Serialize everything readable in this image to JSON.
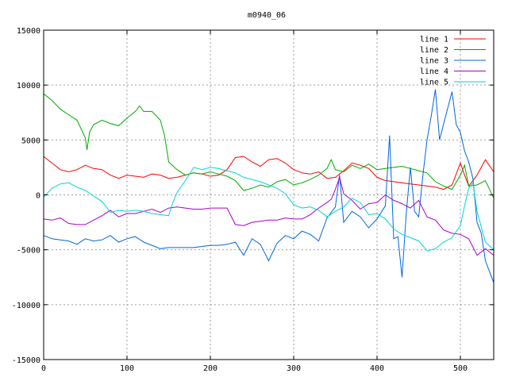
{
  "chart_data": {
    "type": "line",
    "title": "m0940_06",
    "xlim": [
      0,
      540
    ],
    "ylim": [
      -15000,
      15000
    ],
    "x_ticks": [
      0,
      100,
      200,
      300,
      400,
      500
    ],
    "y_ticks": [
      -15000,
      -10000,
      -5000,
      0,
      5000,
      10000,
      15000
    ],
    "grid": true,
    "legend_position": "top-right",
    "series": [
      {
        "name": "line 1",
        "color": "#ff0000",
        "points": [
          [
            0,
            3500
          ],
          [
            10,
            2900
          ],
          [
            20,
            2300
          ],
          [
            30,
            2100
          ],
          [
            40,
            2300
          ],
          [
            50,
            2700
          ],
          [
            60,
            2400
          ],
          [
            70,
            2300
          ],
          [
            80,
            1800
          ],
          [
            90,
            1500
          ],
          [
            100,
            1800
          ],
          [
            110,
            1700
          ],
          [
            120,
            1600
          ],
          [
            130,
            1900
          ],
          [
            140,
            1800
          ],
          [
            150,
            1500
          ],
          [
            160,
            1600
          ],
          [
            170,
            1800
          ],
          [
            180,
            2000
          ],
          [
            190,
            1900
          ],
          [
            200,
            1700
          ],
          [
            210,
            1800
          ],
          [
            220,
            2300
          ],
          [
            230,
            3400
          ],
          [
            240,
            3500
          ],
          [
            250,
            3000
          ],
          [
            260,
            2600
          ],
          [
            270,
            3200
          ],
          [
            280,
            3300
          ],
          [
            290,
            2900
          ],
          [
            300,
            2300
          ],
          [
            310,
            2000
          ],
          [
            320,
            1900
          ],
          [
            330,
            2100
          ],
          [
            340,
            1500
          ],
          [
            350,
            1600
          ],
          [
            360,
            2200
          ],
          [
            370,
            2900
          ],
          [
            380,
            2700
          ],
          [
            390,
            2400
          ],
          [
            400,
            1600
          ],
          [
            410,
            1300
          ],
          [
            420,
            1200
          ],
          [
            430,
            1100
          ],
          [
            440,
            1000
          ],
          [
            450,
            900
          ],
          [
            460,
            800
          ],
          [
            470,
            700
          ],
          [
            480,
            500
          ],
          [
            490,
            900
          ],
          [
            500,
            2900
          ],
          [
            505,
            1800
          ],
          [
            510,
            800
          ],
          [
            520,
            1800
          ],
          [
            530,
            3200
          ],
          [
            540,
            2100
          ]
        ]
      },
      {
        "name": "line 2",
        "color": "#00aa00",
        "points": [
          [
            0,
            9200
          ],
          [
            10,
            8600
          ],
          [
            20,
            7800
          ],
          [
            30,
            7300
          ],
          [
            40,
            6800
          ],
          [
            50,
            5200
          ],
          [
            52,
            4100
          ],
          [
            55,
            5700
          ],
          [
            60,
            6400
          ],
          [
            70,
            6800
          ],
          [
            80,
            6500
          ],
          [
            90,
            6300
          ],
          [
            100,
            7000
          ],
          [
            110,
            7600
          ],
          [
            115,
            8100
          ],
          [
            120,
            7600
          ],
          [
            130,
            7600
          ],
          [
            140,
            6800
          ],
          [
            145,
            5400
          ],
          [
            150,
            3000
          ],
          [
            160,
            2300
          ],
          [
            170,
            1800
          ],
          [
            180,
            2000
          ],
          [
            190,
            1900
          ],
          [
            200,
            2100
          ],
          [
            210,
            1900
          ],
          [
            220,
            1700
          ],
          [
            230,
            1300
          ],
          [
            240,
            400
          ],
          [
            250,
            600
          ],
          [
            260,
            900
          ],
          [
            270,
            700
          ],
          [
            280,
            1200
          ],
          [
            290,
            1400
          ],
          [
            300,
            900
          ],
          [
            310,
            1100
          ],
          [
            320,
            1400
          ],
          [
            330,
            1800
          ],
          [
            340,
            2400
          ],
          [
            345,
            3200
          ],
          [
            350,
            2300
          ],
          [
            360,
            2100
          ],
          [
            370,
            2700
          ],
          [
            380,
            2400
          ],
          [
            390,
            2800
          ],
          [
            400,
            2300
          ],
          [
            410,
            2400
          ],
          [
            420,
            2500
          ],
          [
            430,
            2600
          ],
          [
            440,
            2400
          ],
          [
            450,
            2200
          ],
          [
            460,
            2000
          ],
          [
            470,
            1200
          ],
          [
            480,
            800
          ],
          [
            490,
            500
          ],
          [
            500,
            1800
          ],
          [
            505,
            2700
          ],
          [
            510,
            800
          ],
          [
            520,
            900
          ],
          [
            530,
            1300
          ],
          [
            540,
            -300
          ]
        ]
      },
      {
        "name": "line 3",
        "color": "#0066dd",
        "points": [
          [
            0,
            -3700
          ],
          [
            10,
            -4000
          ],
          [
            20,
            -4100
          ],
          [
            30,
            -4200
          ],
          [
            40,
            -4500
          ],
          [
            50,
            -4000
          ],
          [
            60,
            -4200
          ],
          [
            70,
            -4100
          ],
          [
            80,
            -3700
          ],
          [
            90,
            -4300
          ],
          [
            100,
            -4000
          ],
          [
            110,
            -3800
          ],
          [
            120,
            -4300
          ],
          [
            130,
            -4600
          ],
          [
            140,
            -4900
          ],
          [
            150,
            -4800
          ],
          [
            160,
            -4800
          ],
          [
            170,
            -4800
          ],
          [
            180,
            -4800
          ],
          [
            190,
            -4700
          ],
          [
            200,
            -4600
          ],
          [
            210,
            -4600
          ],
          [
            220,
            -4500
          ],
          [
            230,
            -4300
          ],
          [
            240,
            -5500
          ],
          [
            250,
            -4000
          ],
          [
            260,
            -4500
          ],
          [
            270,
            -6000
          ],
          [
            280,
            -4400
          ],
          [
            290,
            -3700
          ],
          [
            300,
            -4000
          ],
          [
            310,
            -3300
          ],
          [
            320,
            -3600
          ],
          [
            330,
            -4200
          ],
          [
            340,
            -2100
          ],
          [
            350,
            -1100
          ],
          [
            355,
            1800
          ],
          [
            360,
            -2500
          ],
          [
            370,
            -1500
          ],
          [
            380,
            -2000
          ],
          [
            390,
            -3000
          ],
          [
            400,
            -2200
          ],
          [
            410,
            -1000
          ],
          [
            415,
            5400
          ],
          [
            420,
            -4000
          ],
          [
            425,
            -3800
          ],
          [
            430,
            -7500
          ],
          [
            435,
            -1700
          ],
          [
            440,
            2500
          ],
          [
            445,
            -1500
          ],
          [
            450,
            -2000
          ],
          [
            455,
            1800
          ],
          [
            460,
            5000
          ],
          [
            465,
            7200
          ],
          [
            470,
            9600
          ],
          [
            475,
            5000
          ],
          [
            480,
            6500
          ],
          [
            490,
            9400
          ],
          [
            495,
            6400
          ],
          [
            500,
            5700
          ],
          [
            505,
            4000
          ],
          [
            510,
            3000
          ],
          [
            515,
            1500
          ],
          [
            520,
            -2500
          ],
          [
            525,
            -3500
          ],
          [
            530,
            -6000
          ],
          [
            535,
            -7000
          ],
          [
            540,
            -8000
          ]
        ]
      },
      {
        "name": "line 4",
        "color": "#aa00cc",
        "points": [
          [
            0,
            -2200
          ],
          [
            10,
            -2300
          ],
          [
            20,
            -2100
          ],
          [
            30,
            -2600
          ],
          [
            40,
            -2700
          ],
          [
            50,
            -2700
          ],
          [
            60,
            -2300
          ],
          [
            70,
            -1900
          ],
          [
            80,
            -1400
          ],
          [
            90,
            -2000
          ],
          [
            100,
            -1700
          ],
          [
            110,
            -1700
          ],
          [
            120,
            -1500
          ],
          [
            130,
            -1300
          ],
          [
            140,
            -1600
          ],
          [
            150,
            -1200
          ],
          [
            160,
            -1100
          ],
          [
            170,
            -1200
          ],
          [
            180,
            -1300
          ],
          [
            190,
            -1300
          ],
          [
            200,
            -1200
          ],
          [
            210,
            -1200
          ],
          [
            220,
            -1200
          ],
          [
            230,
            -2700
          ],
          [
            240,
            -2800
          ],
          [
            250,
            -2500
          ],
          [
            260,
            -2400
          ],
          [
            270,
            -2300
          ],
          [
            280,
            -2300
          ],
          [
            290,
            -2100
          ],
          [
            300,
            -2200
          ],
          [
            310,
            -2200
          ],
          [
            320,
            -1800
          ],
          [
            330,
            -1200
          ],
          [
            340,
            -700
          ],
          [
            345,
            -400
          ],
          [
            350,
            500
          ],
          [
            355,
            1600
          ],
          [
            360,
            100
          ],
          [
            370,
            -500
          ],
          [
            380,
            -1300
          ],
          [
            390,
            -800
          ],
          [
            400,
            -700
          ],
          [
            410,
            0
          ],
          [
            420,
            -500
          ],
          [
            430,
            -800
          ],
          [
            440,
            -1200
          ],
          [
            450,
            -500
          ],
          [
            460,
            -2000
          ],
          [
            470,
            -2300
          ],
          [
            480,
            -3200
          ],
          [
            490,
            -3500
          ],
          [
            500,
            -3600
          ],
          [
            510,
            -4000
          ],
          [
            520,
            -5500
          ],
          [
            530,
            -4900
          ],
          [
            540,
            -5500
          ]
        ]
      },
      {
        "name": "line 5",
        "color": "#00d4d4",
        "points": [
          [
            0,
            -200
          ],
          [
            10,
            600
          ],
          [
            20,
            1000
          ],
          [
            30,
            1100
          ],
          [
            40,
            700
          ],
          [
            50,
            400
          ],
          [
            60,
            -100
          ],
          [
            70,
            -600
          ],
          [
            80,
            -1600
          ],
          [
            90,
            -1400
          ],
          [
            100,
            -1500
          ],
          [
            110,
            -1400
          ],
          [
            120,
            -1500
          ],
          [
            130,
            -1700
          ],
          [
            140,
            -1800
          ],
          [
            150,
            -1900
          ],
          [
            155,
            -700
          ],
          [
            160,
            200
          ],
          [
            170,
            1300
          ],
          [
            180,
            2500
          ],
          [
            190,
            2300
          ],
          [
            200,
            2500
          ],
          [
            210,
            2400
          ],
          [
            220,
            2200
          ],
          [
            230,
            2000
          ],
          [
            240,
            1600
          ],
          [
            250,
            1400
          ],
          [
            260,
            1200
          ],
          [
            270,
            900
          ],
          [
            280,
            600
          ],
          [
            290,
            100
          ],
          [
            300,
            -900
          ],
          [
            310,
            -1200
          ],
          [
            320,
            -1100
          ],
          [
            330,
            -1400
          ],
          [
            340,
            -2000
          ],
          [
            350,
            -1500
          ],
          [
            360,
            -1100
          ],
          [
            370,
            -300
          ],
          [
            380,
            -700
          ],
          [
            390,
            -1800
          ],
          [
            400,
            -1700
          ],
          [
            410,
            -2200
          ],
          [
            420,
            -3100
          ],
          [
            430,
            -3600
          ],
          [
            440,
            -3900
          ],
          [
            450,
            -4200
          ],
          [
            460,
            -5100
          ],
          [
            470,
            -4900
          ],
          [
            480,
            -4300
          ],
          [
            490,
            -3900
          ],
          [
            500,
            -2800
          ],
          [
            505,
            -1000
          ],
          [
            510,
            600
          ],
          [
            515,
            1100
          ],
          [
            520,
            -1500
          ],
          [
            530,
            -4300
          ],
          [
            540,
            -5000
          ]
        ]
      }
    ]
  }
}
